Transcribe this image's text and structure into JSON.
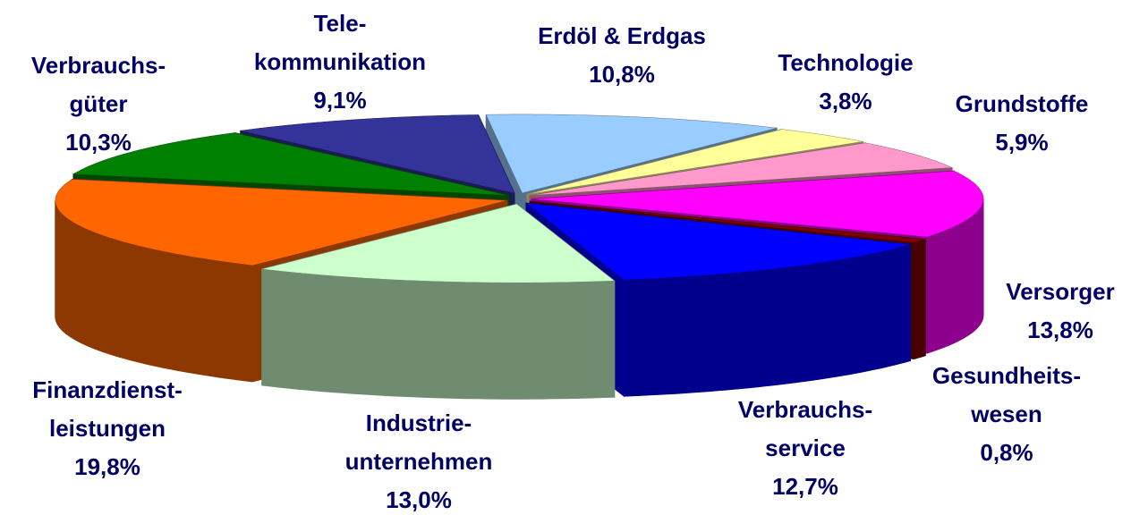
{
  "chart_data": {
    "type": "pie3d",
    "categories": [
      [
        "Erdöl & Erdgas"
      ],
      [
        "Technologie"
      ],
      [
        "Grundstoffe"
      ],
      [
        "Versorger"
      ],
      [
        "Gesundheits-",
        "wesen"
      ],
      [
        "Verbrauchs-",
        "service"
      ],
      [
        "Industrie-",
        "unternehmen"
      ],
      [
        "Finanzdienst-",
        "leistungen"
      ],
      [
        "Verbrauchs-",
        "güter"
      ],
      [
        "Tele-",
        "kommunikation"
      ]
    ],
    "values": [
      10.8,
      3.8,
      5.9,
      13.8,
      0.8,
      12.7,
      13.0,
      19.8,
      10.3,
      9.1
    ],
    "value_labels": [
      "10,8%",
      "3,8%",
      "5,9%",
      "13,8%",
      "0,8%",
      "12,7%",
      "13,0%",
      "19,8%",
      "10,3%",
      "9,1%"
    ],
    "colors": [
      "#99ccff",
      "#ffff99",
      "#ff99cc",
      "#ff00ff",
      "#800000",
      "#0000ff",
      "#ccffcc",
      "#ff6600",
      "#008000",
      "#333399"
    ]
  }
}
